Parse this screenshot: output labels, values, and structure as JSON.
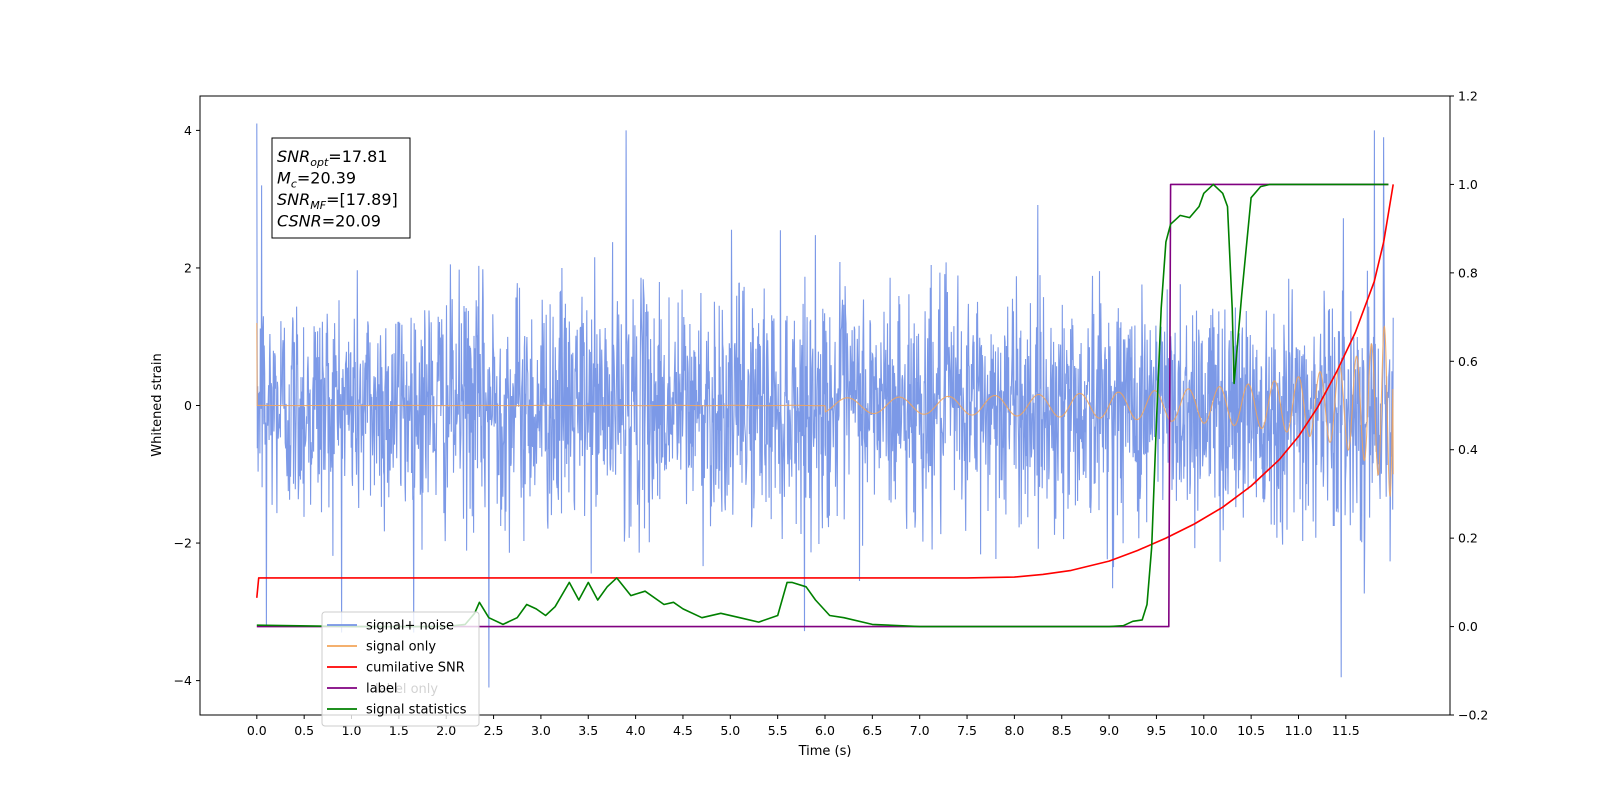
{
  "chart_data": {
    "type": "line",
    "title": "",
    "xlabel": "Time (s)",
    "ylabel": "Whitened strain",
    "xlim": [
      -0.6,
      12.6
    ],
    "ylim": [
      -4.5,
      4.5
    ],
    "y2lim": [
      -0.2,
      1.2
    ],
    "grid": false,
    "legend_position": "lower-left",
    "x_ticks": [
      "0.0",
      "0.5",
      "1.0",
      "1.5",
      "2.0",
      "2.5",
      "3.0",
      "3.5",
      "4.0",
      "4.5",
      "5.0",
      "5.5",
      "6.0",
      "6.5",
      "7.0",
      "7.5",
      "8.0",
      "8.5",
      "9.0",
      "9.5",
      "10.0",
      "10.5",
      "11.0",
      "11.5"
    ],
    "y_ticks": [
      "4",
      "2",
      "0",
      "−2",
      "−4"
    ],
    "y2_ticks": [
      "1.2",
      "1.0",
      "0.8",
      "0.6",
      "0.4",
      "0.2",
      "0.0",
      "−0.2"
    ],
    "annotation": [
      {
        "var": "SNR",
        "sub": "opt",
        "value": "=17.81"
      },
      {
        "var": "M",
        "sub": "c",
        "value": "=20.39"
      },
      {
        "var": "SNR",
        "sub": "MF",
        "value": "=[17.89]"
      },
      {
        "var": "CSNR",
        "sub": "",
        "value": "=20.09"
      }
    ],
    "series": [
      {
        "name": "signal+ noise",
        "color": "#7593e6",
        "axis": "left",
        "kind": "noise",
        "x_range": [
          0.0,
          12.0
        ],
        "envelope_std": 0.85,
        "spikes": [
          [
            0.0,
            4.1
          ],
          [
            3.9,
            4.0
          ],
          [
            0.05,
            3.2
          ],
          [
            11.9,
            3.9
          ],
          [
            11.8,
            4.0
          ],
          [
            2.45,
            -4.1
          ],
          [
            11.45,
            -3.95
          ],
          [
            0.1,
            -3.2
          ]
        ]
      },
      {
        "name": "signal only",
        "color": "#f2a45a",
        "axis": "left",
        "kind": "chirp",
        "x_range": [
          0.0,
          12.0
        ],
        "amplitude_end": 1.45
      },
      {
        "name": "cumilative SNR",
        "color": "#ff0000",
        "axis": "right",
        "x": [
          0.0,
          0.02,
          1.0,
          3.0,
          5.0,
          7.0,
          7.5,
          8.0,
          8.3,
          8.6,
          9.0,
          9.3,
          9.6,
          9.9,
          10.2,
          10.5,
          10.8,
          11.0,
          11.2,
          11.4,
          11.6,
          11.8,
          11.9,
          12.0
        ],
        "y": [
          0.065,
          0.11,
          0.11,
          0.11,
          0.11,
          0.11,
          0.11,
          0.112,
          0.118,
          0.127,
          0.148,
          0.172,
          0.2,
          0.232,
          0.27,
          0.318,
          0.378,
          0.43,
          0.495,
          0.575,
          0.665,
          0.78,
          0.87,
          1.0
        ]
      },
      {
        "name": "label",
        "color": "#800080",
        "axis": "right",
        "x": [
          0.0,
          9.63,
          9.65,
          11.95
        ],
        "y": [
          0.0,
          0.0,
          1.0,
          1.0
        ]
      },
      {
        "name": "signal statistics",
        "color": "#008000",
        "axis": "right",
        "x": [
          0.0,
          1.0,
          2.0,
          2.2,
          2.3,
          2.35,
          2.45,
          2.6,
          2.75,
          2.85,
          2.95,
          3.05,
          3.15,
          3.3,
          3.4,
          3.5,
          3.6,
          3.7,
          3.8,
          3.95,
          4.1,
          4.3,
          4.4,
          4.5,
          4.7,
          4.9,
          5.1,
          5.3,
          5.5,
          5.6,
          5.65,
          5.8,
          5.9,
          6.05,
          6.2,
          6.5,
          7.0,
          7.5,
          8.0,
          8.5,
          9.0,
          9.15,
          9.25,
          9.35,
          9.4,
          9.45,
          9.5,
          9.55,
          9.6,
          9.65,
          9.7,
          9.75,
          9.85,
          9.95,
          10.0,
          10.1,
          10.2,
          10.25,
          10.3,
          10.32,
          10.4,
          10.5,
          10.6,
          10.7,
          10.8,
          11.0,
          11.5,
          11.95
        ],
        "y": [
          0.003,
          0.0,
          0.0,
          0.005,
          0.03,
          0.055,
          0.02,
          0.005,
          0.02,
          0.05,
          0.04,
          0.025,
          0.045,
          0.1,
          0.06,
          0.1,
          0.06,
          0.09,
          0.11,
          0.07,
          0.08,
          0.05,
          0.055,
          0.04,
          0.02,
          0.03,
          0.02,
          0.01,
          0.025,
          0.1,
          0.1,
          0.09,
          0.06,
          0.025,
          0.02,
          0.005,
          0.0,
          0.0,
          0.0,
          0.0,
          0.0,
          0.002,
          0.012,
          0.015,
          0.05,
          0.18,
          0.46,
          0.72,
          0.87,
          0.91,
          0.92,
          0.93,
          0.925,
          0.95,
          0.98,
          1.0,
          0.98,
          0.95,
          0.72,
          0.55,
          0.75,
          0.97,
          0.995,
          1.0,
          1.0,
          1.0,
          1.0,
          1.0
        ]
      }
    ],
    "legend_overlap_label": "label only"
  }
}
